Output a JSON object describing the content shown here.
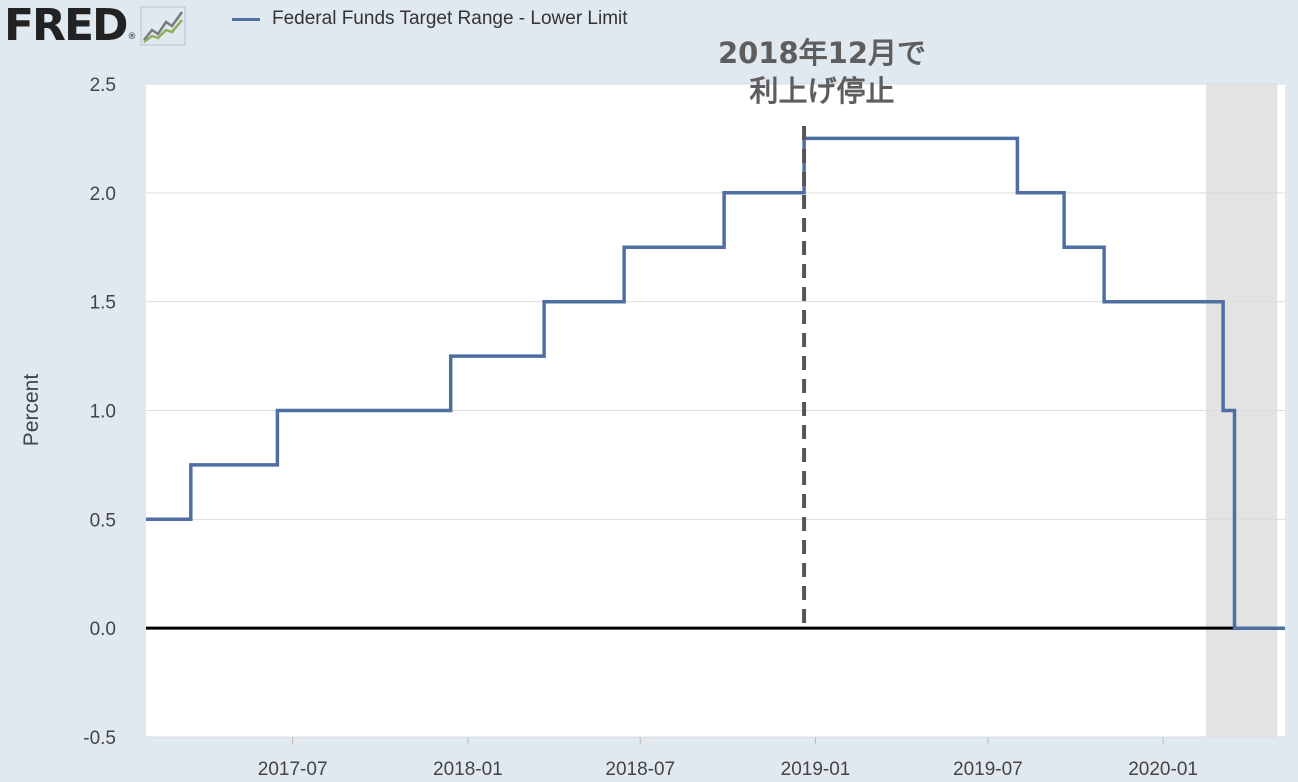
{
  "brand": {
    "name": "FRED",
    "reg": "®"
  },
  "colors": {
    "series": "#4f6fa3",
    "recession": "#e3e3e3",
    "background": "#e1e9f0",
    "plot": "#ffffff",
    "zero_line": "#000000",
    "annotation_line": "#555555"
  },
  "icons": {
    "logo_graph": "line-chart-icon"
  },
  "chart_data": {
    "type": "line",
    "step": true,
    "legend_position": "top-left",
    "grid": true,
    "ylabel": "Percent",
    "ylim": [
      -0.5,
      2.5
    ],
    "yticks": [
      "2.5",
      "2.0",
      "1.5",
      "1.0",
      "0.5",
      "0.0",
      "-0.5"
    ],
    "xlim": [
      "2017-01-28",
      "2020-05-08"
    ],
    "xticks": [
      "2017-07",
      "2018-01",
      "2018-07",
      "2019-01",
      "2019-07",
      "2020-01"
    ],
    "recession_shading": [
      "2020-02-15",
      "2020-04-30"
    ],
    "annotation": {
      "date": "2018-12-20",
      "lines": [
        "2018年12月で",
        "利上げ停止"
      ]
    },
    "series": [
      {
        "name": "Federal Funds Target Range - Lower Limit",
        "points": [
          [
            "2017-01-28",
            0.5
          ],
          [
            "2017-03-16",
            0.75
          ],
          [
            "2017-06-15",
            1.0
          ],
          [
            "2017-12-14",
            1.25
          ],
          [
            "2018-03-22",
            1.5
          ],
          [
            "2018-06-14",
            1.75
          ],
          [
            "2018-09-27",
            2.0
          ],
          [
            "2018-12-20",
            2.25
          ],
          [
            "2019-08-01",
            2.0
          ],
          [
            "2019-09-19",
            1.75
          ],
          [
            "2019-10-31",
            1.5
          ],
          [
            "2020-03-04",
            1.0
          ],
          [
            "2020-03-16",
            0.0
          ],
          [
            "2020-05-08",
            0.0
          ]
        ]
      }
    ]
  }
}
